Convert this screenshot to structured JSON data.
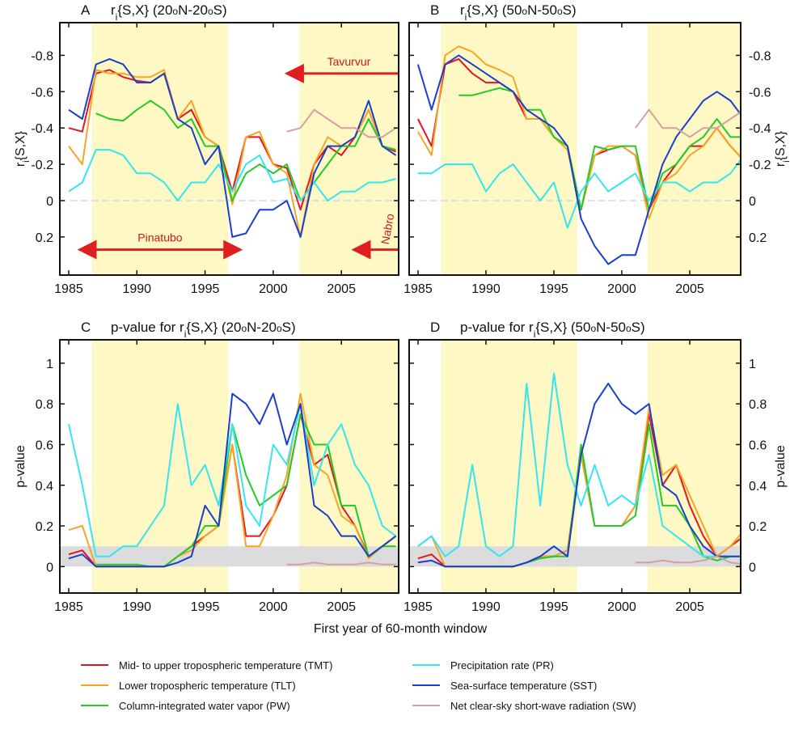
{
  "chart_data": [
    {
      "type": "line",
      "panel": "A",
      "title": [
        {
          "text": "r"
        },
        {
          "text": "i",
          "shift": "sub"
        },
        {
          "text": "{S,X} (20"
        },
        {
          "text": "o",
          "shift": "sup"
        },
        {
          "text": "N-20"
        },
        {
          "text": "o",
          "shift": "sup"
        },
        {
          "text": "S)"
        }
      ],
      "ylabel": [
        {
          "text": "r"
        },
        {
          "text": "i",
          "shift": "sub"
        },
        {
          "text": "{S,X}"
        }
      ],
      "yaxis_side": "left",
      "xlim": [
        1984.35,
        2009.2
      ],
      "xticks": [
        1985,
        1990,
        1995,
        2000,
        2005
      ],
      "ylim": [
        0.41,
        -0.98
      ],
      "yticks": [
        -0.8,
        -0.6,
        -0.4,
        -0.2,
        0,
        0.2
      ],
      "zero_line": true,
      "shaded_spans": [
        [
          1986.7,
          1996.7
        ],
        [
          2001.9,
          2009.2
        ]
      ],
      "annotations": [
        {
          "text": "Tavurvur",
          "span": [
            2001.9,
            2009.2
          ],
          "y": -0.7,
          "heads": "left"
        },
        {
          "text": "Pinatubo",
          "span": [
            1986.7,
            1996.7
          ],
          "y": 0.27,
          "heads": "both"
        },
        {
          "text": "Nabro",
          "span": [
            2006.8,
            2009.2
          ],
          "y": 0.27,
          "heads": "left",
          "rotated": true
        }
      ],
      "x": [
        1985,
        1986,
        1987,
        1988,
        1989,
        1990,
        1991,
        1992,
        1993,
        1994,
        1995,
        1996,
        1997,
        1998,
        1999,
        2000,
        2001,
        2002,
        2003,
        2004,
        2005,
        2006,
        2007,
        2008,
        2009
      ],
      "series": [
        {
          "name": "Mid- to upper tropospheric temperature (TMT)",
          "color": "#e8141c",
          "values": [
            -0.4,
            -0.38,
            -0.7,
            -0.72,
            -0.68,
            -0.66,
            -0.65,
            -0.7,
            -0.45,
            -0.5,
            -0.35,
            -0.3,
            -0.05,
            -0.35,
            -0.35,
            -0.2,
            -0.18,
            0.05,
            -0.2,
            -0.3,
            -0.25,
            -0.35,
            -0.5,
            -0.3,
            -0.27
          ]
        },
        {
          "name": "Lower tropospheric temperature (TLT)",
          "color": "#f5a623",
          "values": [
            -0.3,
            -0.2,
            -0.72,
            -0.7,
            -0.7,
            -0.68,
            -0.68,
            -0.72,
            -0.45,
            -0.55,
            -0.35,
            -0.3,
            0.02,
            -0.35,
            -0.38,
            -0.2,
            -0.15,
            0.2,
            -0.2,
            -0.35,
            -0.3,
            -0.35,
            -0.5,
            -0.3,
            -0.28
          ]
        },
        {
          "name": "Column-integrated water vapor (PW)",
          "color": "#22cc22",
          "values": [
            null,
            null,
            -0.48,
            -0.45,
            -0.44,
            -0.5,
            -0.55,
            -0.5,
            -0.4,
            -0.45,
            -0.3,
            -0.3,
            0.0,
            -0.15,
            -0.2,
            -0.15,
            -0.2,
            0.0,
            -0.1,
            -0.2,
            -0.3,
            -0.3,
            -0.45,
            -0.3,
            -0.28
          ]
        },
        {
          "name": "Precipitation rate (PR)",
          "color": "#33e6f0",
          "values": [
            -0.05,
            -0.1,
            -0.28,
            -0.28,
            -0.25,
            -0.15,
            -0.15,
            -0.1,
            0.0,
            -0.1,
            -0.1,
            -0.2,
            -0.05,
            -0.2,
            -0.25,
            -0.1,
            -0.12,
            0.0,
            -0.1,
            0.0,
            -0.05,
            -0.05,
            -0.1,
            -0.1,
            -0.12
          ]
        },
        {
          "name": "Sea-surface temperature (SST)",
          "color": "#1a3fcc",
          "values": [
            -0.5,
            -0.45,
            -0.75,
            -0.78,
            -0.75,
            -0.65,
            -0.65,
            -0.7,
            -0.45,
            -0.4,
            -0.2,
            -0.3,
            0.2,
            0.18,
            0.05,
            0.05,
            0.0,
            0.2,
            -0.15,
            -0.3,
            -0.3,
            -0.35,
            -0.55,
            -0.3,
            -0.25
          ]
        },
        {
          "name": "Net clear-sky short-wave radiation (SW)",
          "color": "#d4a0a0",
          "values": [
            null,
            null,
            null,
            null,
            null,
            null,
            null,
            null,
            null,
            null,
            null,
            null,
            null,
            null,
            null,
            null,
            -0.38,
            -0.4,
            -0.5,
            -0.45,
            -0.4,
            -0.4,
            -0.35,
            -0.35,
            -0.4
          ]
        }
      ]
    },
    {
      "type": "line",
      "panel": "B",
      "title": [
        {
          "text": "r"
        },
        {
          "text": "i",
          "shift": "sub"
        },
        {
          "text": "{S,X} (50"
        },
        {
          "text": "o",
          "shift": "sup"
        },
        {
          "text": "N-50"
        },
        {
          "text": "o",
          "shift": "sup"
        },
        {
          "text": "S)"
        }
      ],
      "ylabel": [
        {
          "text": "r"
        },
        {
          "text": "i",
          "shift": "sub"
        },
        {
          "text": "{S,X}"
        }
      ],
      "yaxis_side": "right",
      "xlim": [
        1984.35,
        2008.75
      ],
      "xticks": [
        1985,
        1990,
        1995,
        2000,
        2005
      ],
      "ylim": [
        0.41,
        -0.98
      ],
      "yticks": [
        -0.8,
        -0.6,
        -0.4,
        -0.2,
        0,
        0.2
      ],
      "zero_line": true,
      "shaded_spans": [
        [
          1986.7,
          1996.7
        ],
        [
          2001.9,
          2008.75
        ]
      ],
      "x": [
        1985,
        1986,
        1987,
        1988,
        1989,
        1990,
        1991,
        1992,
        1993,
        1994,
        1995,
        1996,
        1997,
        1998,
        1999,
        2000,
        2001,
        2002,
        2003,
        2004,
        2005,
        2006,
        2007,
        2008,
        2009
      ],
      "series": [
        {
          "values": [
            -0.45,
            -0.3,
            -0.75,
            -0.78,
            -0.7,
            -0.65,
            -0.65,
            -0.6,
            -0.45,
            -0.45,
            -0.35,
            -0.3,
            0.05,
            -0.25,
            -0.28,
            -0.3,
            -0.25,
            0.05,
            -0.1,
            -0.2,
            -0.3,
            -0.3,
            -0.4,
            -0.3,
            -0.22
          ]
        },
        {
          "values": [
            -0.38,
            -0.25,
            -0.8,
            -0.85,
            -0.82,
            -0.75,
            -0.72,
            -0.68,
            -0.45,
            -0.45,
            -0.35,
            -0.28,
            0.05,
            -0.25,
            -0.3,
            -0.3,
            -0.25,
            0.1,
            -0.1,
            -0.15,
            -0.25,
            -0.3,
            -0.4,
            -0.3,
            -0.22
          ]
        },
        {
          "values": [
            null,
            null,
            null,
            -0.58,
            -0.58,
            -0.6,
            -0.62,
            -0.6,
            -0.5,
            -0.5,
            -0.35,
            -0.3,
            0.05,
            -0.3,
            -0.28,
            -0.3,
            -0.3,
            0.05,
            -0.15,
            -0.2,
            -0.3,
            -0.35,
            -0.45,
            -0.35,
            -0.35
          ]
        },
        {
          "values": [
            -0.15,
            -0.15,
            -0.2,
            -0.2,
            -0.2,
            -0.05,
            -0.15,
            -0.2,
            -0.1,
            0.0,
            -0.1,
            0.15,
            -0.05,
            -0.15,
            -0.05,
            -0.1,
            -0.15,
            0.0,
            -0.1,
            -0.1,
            -0.05,
            -0.1,
            -0.1,
            -0.15,
            -0.25
          ]
        },
        {
          "values": [
            -0.75,
            -0.5,
            -0.75,
            -0.8,
            -0.75,
            -0.7,
            -0.65,
            -0.6,
            -0.5,
            -0.45,
            -0.4,
            -0.3,
            0.1,
            0.25,
            0.35,
            0.3,
            0.3,
            0.05,
            -0.2,
            -0.35,
            -0.45,
            -0.55,
            -0.6,
            -0.55,
            -0.45
          ]
        },
        {
          "values": [
            null,
            null,
            null,
            null,
            null,
            null,
            null,
            null,
            null,
            null,
            null,
            null,
            null,
            null,
            null,
            null,
            -0.4,
            -0.5,
            -0.4,
            -0.4,
            -0.35,
            -0.4,
            -0.4,
            -0.45,
            -0.5
          ]
        }
      ]
    },
    {
      "type": "line",
      "panel": "C",
      "title": [
        {
          "text": "p-value for r"
        },
        {
          "text": "i",
          "shift": "sub"
        },
        {
          "text": "{S,X} (20"
        },
        {
          "text": "o",
          "shift": "sup"
        },
        {
          "text": "N-20"
        },
        {
          "text": "o",
          "shift": "sup"
        },
        {
          "text": "S)"
        }
      ],
      "ylabel": [
        {
          "text": "p-value"
        }
      ],
      "yaxis_side": "left",
      "xlabel": "First year of 60-month window",
      "xlim": [
        1984.35,
        2009.2
      ],
      "xticks": [
        1985,
        1990,
        1995,
        2000,
        2005
      ],
      "ylim": [
        -0.13,
        1.115
      ],
      "yticks": [
        0,
        0.2,
        0.4,
        0.6,
        0.8,
        1
      ],
      "shaded_spans": [
        [
          1986.7,
          1996.7
        ],
        [
          2001.9,
          2009.2
        ]
      ],
      "significance_band": [
        0,
        0.1
      ],
      "x": [
        1985,
        1986,
        1987,
        1988,
        1989,
        1990,
        1991,
        1992,
        1993,
        1994,
        1995,
        1996,
        1997,
        1998,
        1999,
        2000,
        2001,
        2002,
        2003,
        2004,
        2005,
        2006,
        2007,
        2008,
        2009
      ],
      "series": [
        {
          "values": [
            0.06,
            0.08,
            0.0,
            0.0,
            0.0,
            0.0,
            0.0,
            0.0,
            0.05,
            0.1,
            0.15,
            0.2,
            0.6,
            0.15,
            0.15,
            0.25,
            0.4,
            0.75,
            0.5,
            0.55,
            0.3,
            0.2,
            0.05,
            0.1,
            0.15
          ]
        },
        {
          "values": [
            0.18,
            0.2,
            0.0,
            0.0,
            0.0,
            0.0,
            0.0,
            0.0,
            0.05,
            0.08,
            0.15,
            0.2,
            0.6,
            0.1,
            0.1,
            0.25,
            0.45,
            0.85,
            0.5,
            0.45,
            0.25,
            0.2,
            0.04,
            0.1,
            0.15
          ]
        },
        {
          "values": [
            null,
            null,
            0.01,
            0.01,
            0.01,
            0.01,
            0.0,
            0.0,
            0.05,
            0.1,
            0.2,
            0.2,
            0.7,
            0.45,
            0.3,
            0.35,
            0.4,
            0.75,
            0.6,
            0.6,
            0.3,
            0.3,
            0.05,
            0.1,
            0.1
          ]
        },
        {
          "values": [
            0.7,
            0.4,
            0.05,
            0.05,
            0.1,
            0.1,
            0.2,
            0.3,
            0.8,
            0.4,
            0.5,
            0.3,
            0.7,
            0.3,
            0.2,
            0.6,
            0.5,
            0.8,
            0.4,
            0.6,
            0.7,
            0.5,
            0.4,
            0.2,
            0.15
          ]
        },
        {
          "values": [
            0.04,
            0.06,
            0.0,
            0.0,
            0.0,
            0.0,
            0.0,
            0.0,
            0.02,
            0.05,
            0.3,
            0.2,
            0.85,
            0.8,
            0.7,
            0.85,
            0.6,
            0.8,
            0.3,
            0.25,
            0.15,
            0.15,
            0.05,
            0.1,
            0.15
          ]
        },
        {
          "values": [
            null,
            null,
            null,
            null,
            null,
            null,
            null,
            null,
            null,
            null,
            null,
            null,
            null,
            null,
            null,
            null,
            0.01,
            0.01,
            0.02,
            0.01,
            0.01,
            0.01,
            0.02,
            0.01,
            0.01
          ]
        }
      ]
    },
    {
      "type": "line",
      "panel": "D",
      "title": [
        {
          "text": "p-value for r"
        },
        {
          "text": "i",
          "shift": "sub"
        },
        {
          "text": "{S,X} (50"
        },
        {
          "text": "o",
          "shift": "sup"
        },
        {
          "text": "N-50"
        },
        {
          "text": "o",
          "shift": "sup"
        },
        {
          "text": "S)"
        }
      ],
      "ylabel": [
        {
          "text": "p-value"
        }
      ],
      "yaxis_side": "right",
      "xlim": [
        1984.35,
        2008.75
      ],
      "xticks": [
        1985,
        1990,
        1995,
        2000,
        2005
      ],
      "ylim": [
        -0.13,
        1.115
      ],
      "yticks": [
        0,
        0.2,
        0.4,
        0.6,
        0.8,
        1
      ],
      "shaded_spans": [
        [
          1986.7,
          1996.7
        ],
        [
          2001.9,
          2008.75
        ]
      ],
      "significance_band": [
        0,
        0.1
      ],
      "x": [
        1985,
        1986,
        1987,
        1988,
        1989,
        1990,
        1991,
        1992,
        1993,
        1994,
        1995,
        1996,
        1997,
        1998,
        1999,
        2000,
        2001,
        2002,
        2003,
        2004,
        2005,
        2006,
        2007,
        2008,
        2009
      ],
      "series": [
        {
          "values": [
            0.04,
            0.06,
            0.0,
            0.0,
            0.0,
            0.0,
            0.0,
            0.0,
            0.02,
            0.05,
            0.05,
            0.08,
            0.55,
            0.2,
            0.2,
            0.2,
            0.3,
            0.75,
            0.4,
            0.5,
            0.3,
            0.15,
            0.05,
            0.1,
            0.15
          ]
        },
        {
          "values": [
            0.1,
            0.15,
            0.0,
            0.0,
            0.0,
            0.0,
            0.0,
            0.0,
            0.02,
            0.05,
            0.05,
            0.08,
            0.55,
            0.2,
            0.2,
            0.2,
            0.3,
            0.78,
            0.45,
            0.5,
            0.35,
            0.2,
            0.05,
            0.1,
            0.18
          ]
        },
        {
          "values": [
            null,
            null,
            null,
            0.0,
            0.0,
            0.0,
            0.0,
            0.0,
            0.02,
            0.04,
            0.05,
            0.05,
            0.6,
            0.2,
            0.2,
            0.2,
            0.25,
            0.7,
            0.3,
            0.3,
            0.2,
            0.05,
            0.03,
            0.05,
            0.05
          ]
        },
        {
          "values": [
            0.1,
            0.15,
            0.05,
            0.1,
            0.5,
            0.1,
            0.05,
            0.1,
            0.9,
            0.3,
            0.95,
            0.5,
            0.3,
            0.5,
            0.3,
            0.35,
            0.3,
            0.55,
            0.2,
            0.15,
            0.1,
            0.05,
            0.05,
            0.05,
            0.05
          ]
        },
        {
          "values": [
            0.02,
            0.03,
            0.0,
            0.0,
            0.0,
            0.0,
            0.0,
            0.0,
            0.02,
            0.05,
            0.1,
            0.05,
            0.55,
            0.8,
            0.9,
            0.8,
            0.75,
            0.8,
            0.4,
            0.35,
            0.2,
            0.1,
            0.05,
            0.05,
            0.05
          ]
        },
        {
          "values": [
            null,
            null,
            null,
            null,
            null,
            null,
            null,
            null,
            null,
            null,
            null,
            null,
            null,
            null,
            null,
            null,
            0.02,
            0.02,
            0.03,
            0.02,
            0.02,
            0.03,
            0.05,
            0.02,
            0.01
          ]
        }
      ]
    }
  ]
}
